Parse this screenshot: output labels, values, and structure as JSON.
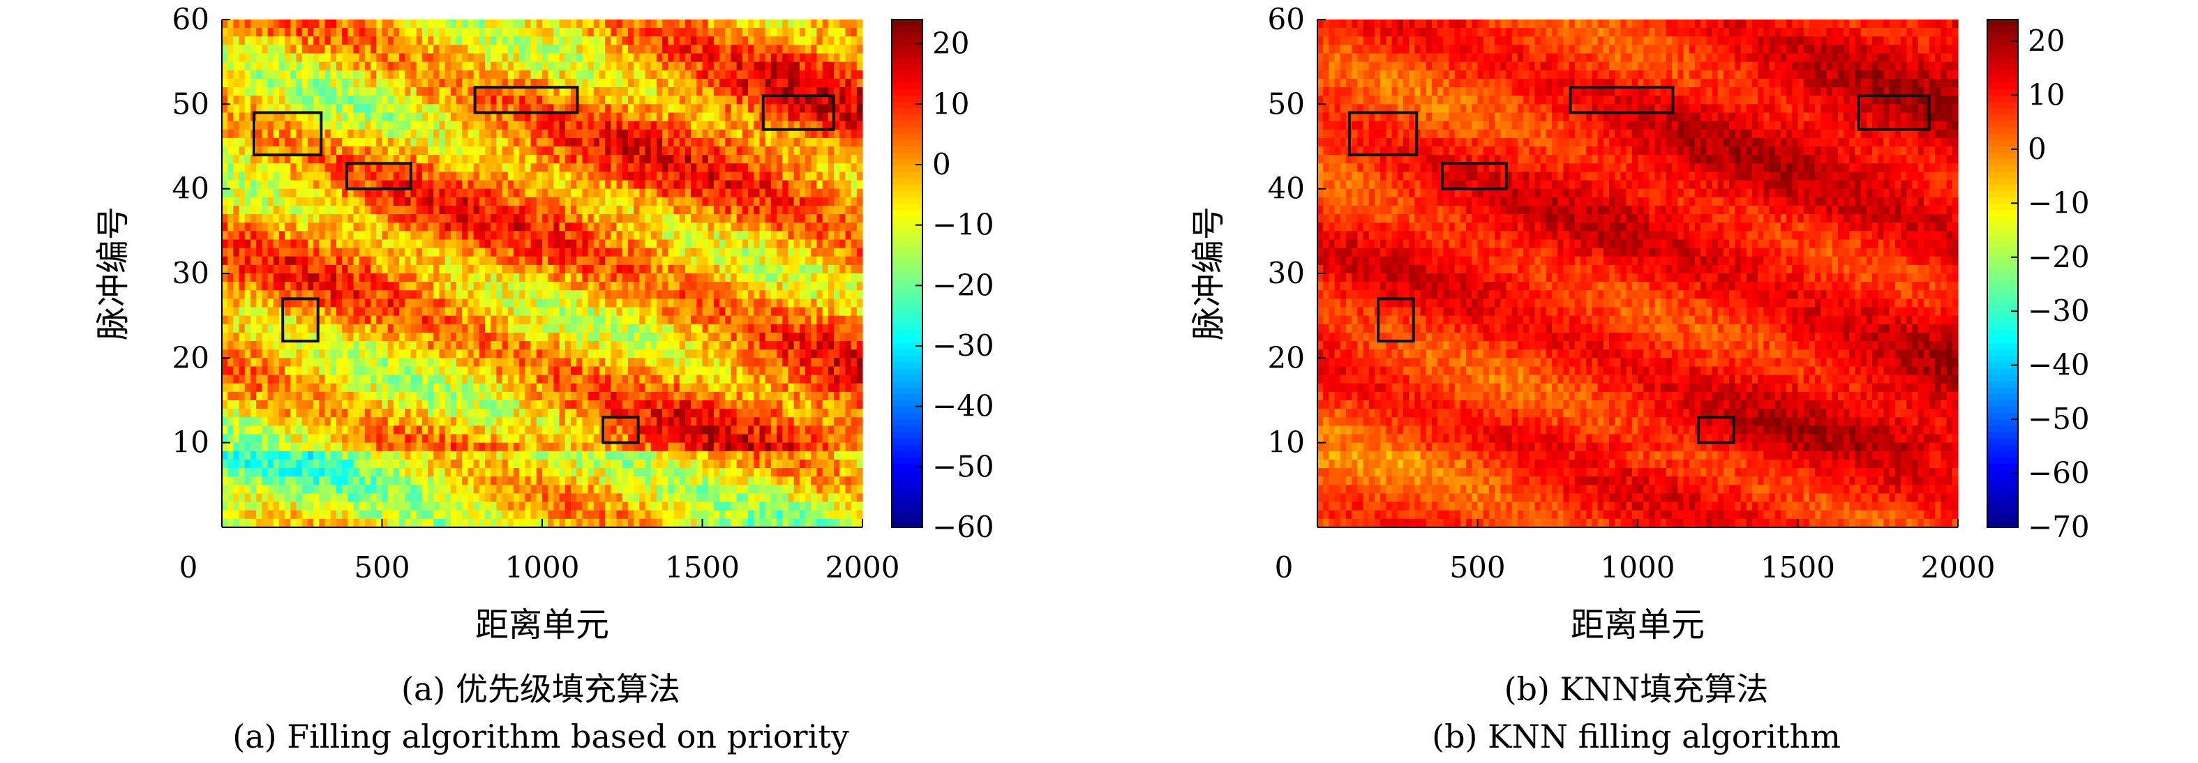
{
  "panels": [
    {
      "caption_cn": "(a) 优先级填充算法",
      "caption_en": "(a) Filling algorithm based on priority"
    },
    {
      "caption_cn": "(b) KNN填充算法",
      "caption_en": "(b) KNN filling algorithm"
    }
  ],
  "chart_data": [
    {
      "type": "heatmap",
      "xlabel": "距离单元",
      "ylabel": "脉冲编号",
      "xlim": [
        0,
        2000
      ],
      "ylim": [
        0,
        60
      ],
      "x_ticks": [
        0,
        500,
        1000,
        1500,
        2000
      ],
      "y_ticks": [
        10,
        20,
        30,
        40,
        50,
        60
      ],
      "colorbar": {
        "range": [
          -60,
          24
        ],
        "ticks": [
          20,
          10,
          0,
          -10,
          -20,
          -30,
          -40,
          -50,
          -60
        ],
        "colormap": "jet"
      },
      "value_bias": -2,
      "value_spread": 14,
      "lower_band_bias": -12,
      "boxes": [
        {
          "x0": 100,
          "x1": 310,
          "y0": 44,
          "y1": 49
        },
        {
          "x0": 390,
          "x1": 590,
          "y0": 40,
          "y1": 43
        },
        {
          "x0": 790,
          "x1": 1110,
          "y0": 49,
          "y1": 52
        },
        {
          "x0": 1690,
          "x1": 1910,
          "y0": 47,
          "y1": 51
        },
        {
          "x0": 190,
          "x1": 300,
          "y0": 22,
          "y1": 27
        },
        {
          "x0": 1190,
          "x1": 1300,
          "y0": 10,
          "y1": 13
        }
      ]
    },
    {
      "type": "heatmap",
      "xlabel": "距离单元",
      "ylabel": "脉冲编号",
      "xlim": [
        0,
        2000
      ],
      "ylim": [
        0,
        60
      ],
      "x_ticks": [
        0,
        500,
        1000,
        1500,
        2000
      ],
      "y_ticks": [
        10,
        20,
        30,
        40,
        50,
        60
      ],
      "colorbar": {
        "range": [
          -70,
          24
        ],
        "ticks": [
          20,
          10,
          0,
          -10,
          -20,
          -30,
          -40,
          -50,
          -60,
          -70
        ],
        "colormap": "jet"
      },
      "value_bias": 8,
      "value_spread": 8,
      "lower_band_bias": -4,
      "boxes": [
        {
          "x0": 100,
          "x1": 310,
          "y0": 44,
          "y1": 49
        },
        {
          "x0": 390,
          "x1": 590,
          "y0": 40,
          "y1": 43
        },
        {
          "x0": 790,
          "x1": 1110,
          "y0": 49,
          "y1": 52
        },
        {
          "x0": 1690,
          "x1": 1910,
          "y0": 47,
          "y1": 51
        },
        {
          "x0": 190,
          "x1": 300,
          "y0": 22,
          "y1": 27
        },
        {
          "x0": 1190,
          "x1": 1300,
          "y0": 10,
          "y1": 13
        }
      ]
    }
  ]
}
